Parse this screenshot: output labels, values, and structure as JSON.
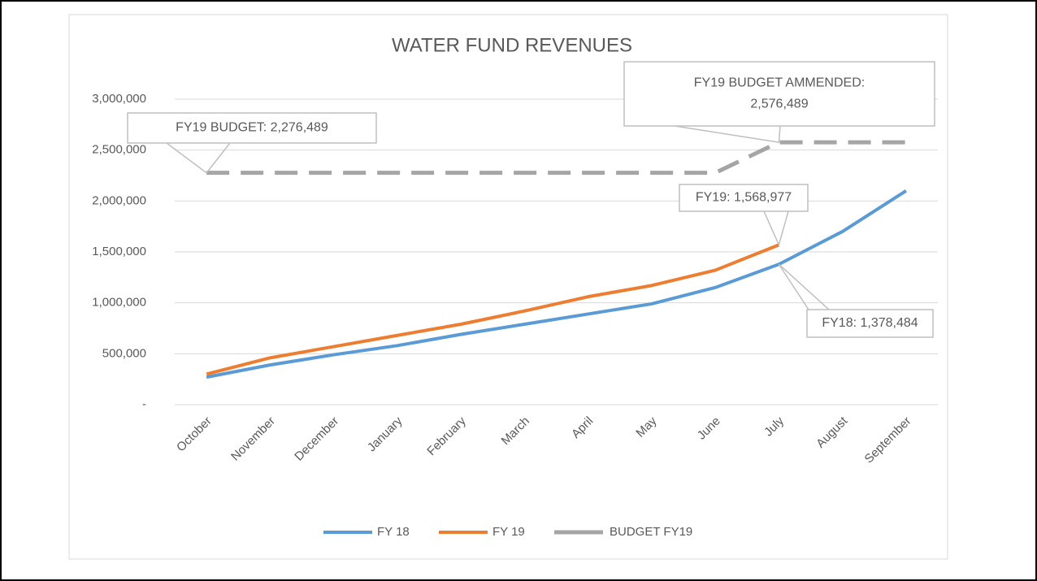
{
  "chart_data": {
    "type": "line",
    "title": "WATER FUND REVENUES",
    "categories": [
      "October",
      "November",
      "December",
      "January",
      "February",
      "March",
      "April",
      "May",
      "June",
      "July",
      "August",
      "September"
    ],
    "series": [
      {
        "name": "FY 18",
        "color": "#5b9bd5",
        "dashed": false,
        "values": [
          270000,
          390000,
          490000,
          580000,
          690000,
          790000,
          890000,
          990000,
          1150000,
          1378484,
          1700000,
          2100000
        ]
      },
      {
        "name": "FY 19",
        "color": "#ed7d31",
        "dashed": false,
        "values": [
          300000,
          460000,
          570000,
          680000,
          790000,
          920000,
          1060000,
          1170000,
          1320000,
          1568977,
          null,
          null
        ]
      },
      {
        "name": "BUDGET FY19",
        "color": "#a5a5a5",
        "dashed": true,
        "values": [
          2276489,
          2276489,
          2276489,
          2276489,
          2276489,
          2276489,
          2276489,
          2276489,
          2276489,
          2576489,
          2576489,
          2576489
        ]
      }
    ],
    "ylim": [
      0,
      3000000
    ],
    "yticks": [
      {
        "value": 0,
        "label": "-"
      },
      {
        "value": 500000,
        "label": "500,000"
      },
      {
        "value": 1000000,
        "label": "1,000,000"
      },
      {
        "value": 1500000,
        "label": "1,500,000"
      },
      {
        "value": 2000000,
        "label": "2,000,000"
      },
      {
        "value": 2500000,
        "label": "2,500,000"
      },
      {
        "value": 3000000,
        "label": "3,000,000"
      }
    ],
    "grid": true,
    "legend": "bottom",
    "annotations": [
      {
        "lines": [
          "FY19 BUDGET: 2,276,489"
        ]
      },
      {
        "lines": [
          "FY19 BUDGET AMMENDED:",
          "2,576,489"
        ]
      },
      {
        "lines": [
          "FY19:  1,568,977"
        ]
      },
      {
        "lines": [
          "FY18:  1,378,484"
        ]
      }
    ]
  }
}
